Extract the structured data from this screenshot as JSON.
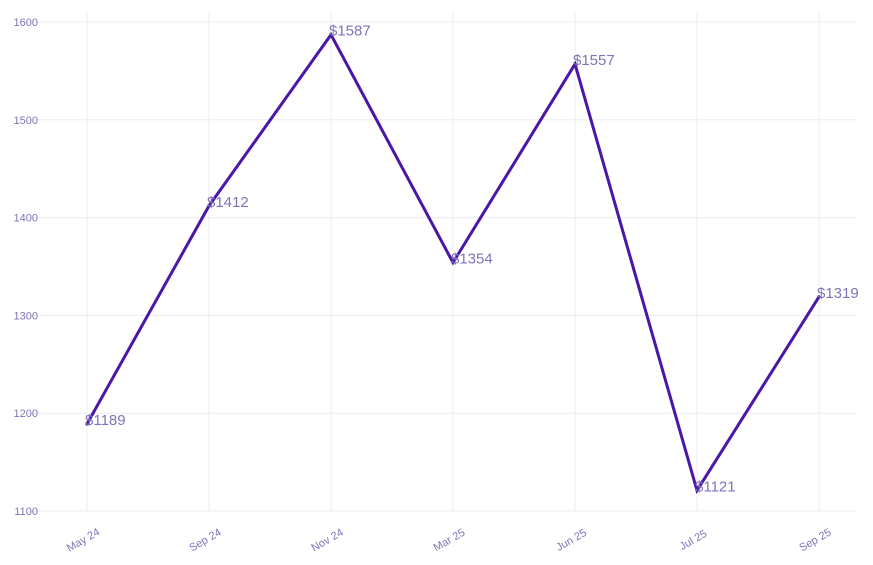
{
  "chart_data": {
    "type": "line",
    "title": "",
    "xlabel": "",
    "ylabel": "",
    "categories": [
      "May 24",
      "Sep 24",
      "Nov 24",
      "Mar 25",
      "Jun 25",
      "Jul 25",
      "Sep 25"
    ],
    "series": [
      {
        "values": [
          1189,
          1412,
          1587,
          1354,
          1557,
          1121,
          1319
        ],
        "data_labels": [
          "$1189",
          "$1412",
          "$1587",
          "$1354",
          "$1557",
          "$1121",
          "$1319"
        ]
      }
    ],
    "ylim": [
      1100,
      1600
    ],
    "yticks": [
      "1100",
      "1200",
      "1300",
      "1400",
      "1500",
      "1600"
    ],
    "grid": true,
    "legend": "none",
    "colors": {
      "line": "#4a17a8",
      "text": "#8173b8",
      "grid": "#ececf2"
    }
  }
}
